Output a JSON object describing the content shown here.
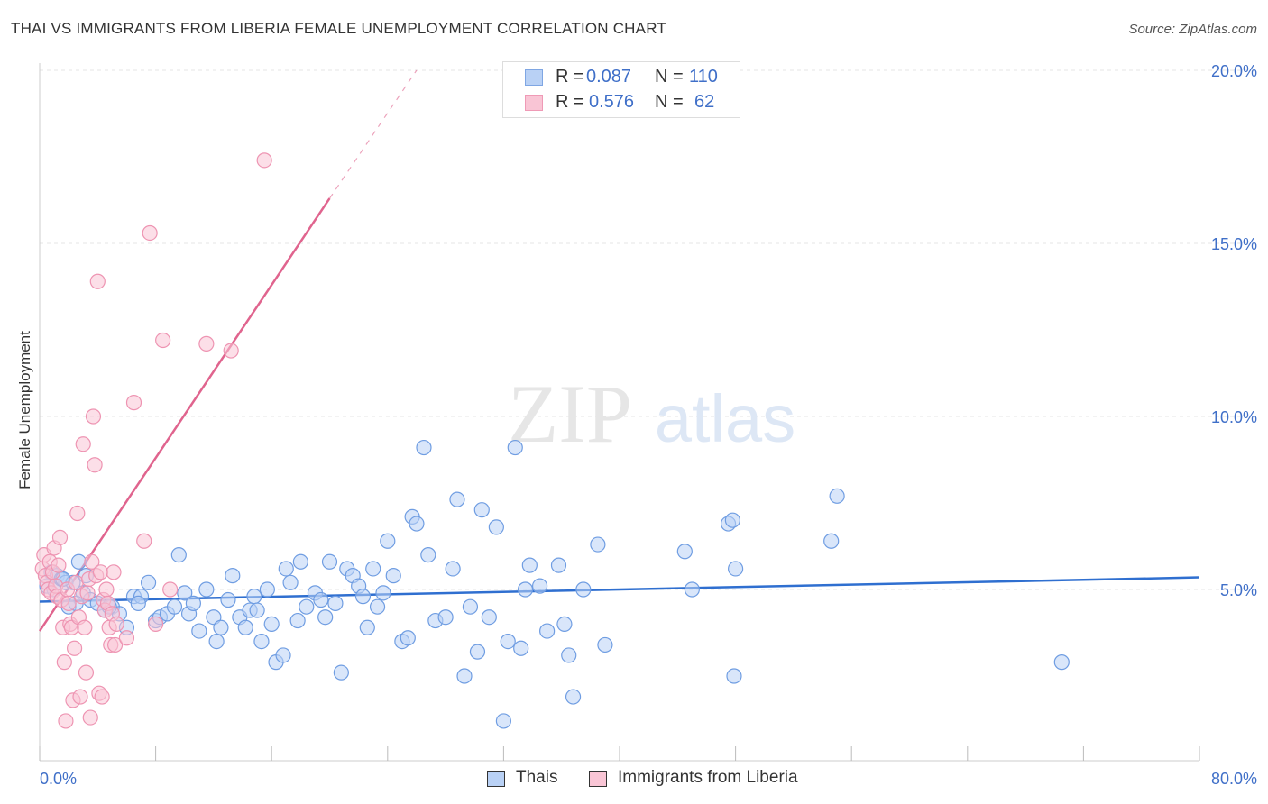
{
  "header": {
    "title": "THAI VS IMMIGRANTS FROM LIBERIA FEMALE UNEMPLOYMENT CORRELATION CHART",
    "source": "Source: ZipAtlas.com"
  },
  "legend": {
    "series1": {
      "r_label": "R =",
      "r_value": "0.087",
      "n_label": "N =",
      "n_value": "110"
    },
    "series2": {
      "r_label": "R =",
      "r_value": "0.576",
      "n_label": "N =",
      "n_value": "62"
    }
  },
  "bottom_legend": {
    "series1": "Thais",
    "series2": "Immigrants from Liberia"
  },
  "watermark": {
    "zip": "ZIP",
    "atlas": "atlas"
  },
  "colors": {
    "blue_fill": "#b9d1f5",
    "blue_stroke": "#6f9de2",
    "blue_line": "#2f6fd0",
    "pink_fill": "#f9c5d5",
    "pink_stroke": "#ee94b2",
    "pink_line": "#e0648e",
    "axis_text": "#3f6fc8"
  },
  "chart_data": {
    "type": "scatter",
    "title": "THAI VS IMMIGRANTS FROM LIBERIA FEMALE UNEMPLOYMENT CORRELATION CHART",
    "xlabel": "",
    "ylabel": "Female Unemployment",
    "xlim": [
      0,
      80
    ],
    "ylim": [
      0,
      20.5
    ],
    "x_tick_labels": [
      "0.0%",
      "80.0%"
    ],
    "y_ticks": [
      5,
      10,
      15,
      20
    ],
    "y_tick_labels": [
      "5.0%",
      "10.0%",
      "15.0%",
      "20.0%"
    ],
    "grid": true,
    "series": [
      {
        "name": "Thais",
        "R": 0.087,
        "N": 110,
        "trend": {
          "x": [
            0,
            80
          ],
          "y": [
            4.65,
            5.35
          ]
        },
        "points": [
          [
            0.5,
            5.1
          ],
          [
            0.8,
            5.5
          ],
          [
            1.0,
            5.0
          ],
          [
            1.2,
            5.4
          ],
          [
            1.5,
            5.3
          ],
          [
            1.8,
            5.2
          ],
          [
            2.0,
            4.5
          ],
          [
            2.3,
            5.2
          ],
          [
            2.7,
            5.8
          ],
          [
            3.0,
            4.9
          ],
          [
            3.5,
            4.7
          ],
          [
            4.0,
            4.6
          ],
          [
            4.5,
            4.4
          ],
          [
            5.0,
            4.5
          ],
          [
            5.5,
            4.3
          ],
          [
            6.0,
            3.9
          ],
          [
            6.5,
            4.8
          ],
          [
            7.0,
            4.8
          ],
          [
            7.5,
            5.2
          ],
          [
            8.0,
            4.1
          ],
          [
            8.3,
            4.2
          ],
          [
            8.8,
            4.3
          ],
          [
            9.3,
            4.5
          ],
          [
            9.6,
            6.0
          ],
          [
            10.0,
            4.9
          ],
          [
            10.3,
            4.3
          ],
          [
            10.6,
            4.6
          ],
          [
            11.0,
            3.8
          ],
          [
            11.5,
            5.0
          ],
          [
            12.0,
            4.2
          ],
          [
            12.2,
            3.5
          ],
          [
            12.5,
            3.9
          ],
          [
            13.0,
            4.7
          ],
          [
            13.3,
            5.4
          ],
          [
            13.8,
            4.2
          ],
          [
            14.2,
            3.9
          ],
          [
            14.5,
            4.4
          ],
          [
            14.8,
            4.8
          ],
          [
            15.0,
            4.4
          ],
          [
            15.3,
            3.5
          ],
          [
            15.7,
            5.0
          ],
          [
            16.0,
            4.0
          ],
          [
            16.3,
            2.9
          ],
          [
            16.8,
            3.1
          ],
          [
            17.0,
            5.6
          ],
          [
            17.3,
            5.2
          ],
          [
            17.8,
            4.1
          ],
          [
            18.0,
            5.8
          ],
          [
            18.4,
            4.5
          ],
          [
            19.0,
            4.9
          ],
          [
            19.4,
            4.7
          ],
          [
            19.7,
            4.2
          ],
          [
            20.0,
            5.8
          ],
          [
            20.4,
            4.6
          ],
          [
            20.8,
            2.6
          ],
          [
            21.2,
            5.6
          ],
          [
            21.6,
            5.4
          ],
          [
            22.0,
            5.1
          ],
          [
            22.3,
            4.8
          ],
          [
            22.6,
            3.9
          ],
          [
            23.0,
            5.6
          ],
          [
            23.3,
            4.5
          ],
          [
            23.7,
            4.9
          ],
          [
            24.0,
            6.4
          ],
          [
            24.4,
            5.4
          ],
          [
            25.0,
            3.5
          ],
          [
            25.4,
            3.6
          ],
          [
            25.7,
            7.1
          ],
          [
            26.0,
            6.9
          ],
          [
            26.5,
            9.1
          ],
          [
            26.8,
            6.0
          ],
          [
            27.3,
            4.1
          ],
          [
            28.0,
            4.2
          ],
          [
            28.5,
            5.6
          ],
          [
            28.8,
            7.6
          ],
          [
            29.3,
            2.5
          ],
          [
            29.7,
            4.5
          ],
          [
            30.2,
            3.2
          ],
          [
            30.5,
            7.3
          ],
          [
            31.0,
            4.2
          ],
          [
            31.5,
            6.8
          ],
          [
            32.0,
            1.2
          ],
          [
            32.3,
            3.5
          ],
          [
            32.8,
            9.1
          ],
          [
            33.2,
            3.3
          ],
          [
            33.5,
            5.0
          ],
          [
            33.8,
            5.7
          ],
          [
            34.5,
            5.1
          ],
          [
            35.0,
            3.8
          ],
          [
            35.8,
            5.7
          ],
          [
            36.2,
            4.0
          ],
          [
            36.5,
            3.1
          ],
          [
            36.8,
            1.9
          ],
          [
            37.5,
            5.0
          ],
          [
            38.5,
            6.3
          ],
          [
            39.0,
            3.4
          ],
          [
            44.5,
            6.1
          ],
          [
            45.0,
            5.0
          ],
          [
            47.5,
            6.9
          ],
          [
            47.8,
            7.0
          ],
          [
            47.9,
            2.5
          ],
          [
            48.0,
            5.6
          ],
          [
            54.6,
            6.4
          ],
          [
            55.0,
            7.7
          ],
          [
            70.5,
            2.9
          ],
          [
            1.6,
            5.3
          ],
          [
            2.5,
            4.6
          ],
          [
            3.2,
            5.4
          ],
          [
            4.8,
            4.5
          ],
          [
            6.8,
            4.6
          ]
        ]
      },
      {
        "name": "Immigrants from Liberia",
        "R": 0.576,
        "N": 62,
        "trend": {
          "x": [
            0,
            20.0
          ],
          "y": [
            3.8,
            16.3
          ],
          "dashed_x": [
            20.0,
            26.0
          ],
          "dashed_y": [
            16.3,
            20.0
          ]
        },
        "points": [
          [
            0.2,
            5.6
          ],
          [
            0.3,
            6.0
          ],
          [
            0.4,
            5.4
          ],
          [
            0.5,
            5.2
          ],
          [
            0.6,
            5.0
          ],
          [
            0.7,
            5.8
          ],
          [
            0.8,
            4.9
          ],
          [
            0.9,
            5.5
          ],
          [
            1.0,
            6.2
          ],
          [
            1.1,
            5.1
          ],
          [
            1.2,
            4.8
          ],
          [
            1.3,
            5.7
          ],
          [
            1.4,
            6.5
          ],
          [
            1.5,
            4.7
          ],
          [
            1.6,
            3.9
          ],
          [
            1.7,
            2.9
          ],
          [
            1.8,
            1.2
          ],
          [
            1.9,
            5.0
          ],
          [
            2.0,
            4.6
          ],
          [
            2.1,
            4.0
          ],
          [
            2.2,
            3.9
          ],
          [
            2.3,
            1.8
          ],
          [
            2.4,
            3.3
          ],
          [
            2.5,
            5.2
          ],
          [
            2.6,
            7.2
          ],
          [
            2.7,
            4.2
          ],
          [
            2.8,
            1.9
          ],
          [
            2.9,
            4.8
          ],
          [
            3.0,
            9.2
          ],
          [
            3.1,
            3.9
          ],
          [
            3.2,
            2.6
          ],
          [
            3.3,
            4.9
          ],
          [
            3.4,
            5.3
          ],
          [
            3.5,
            1.3
          ],
          [
            3.6,
            5.8
          ],
          [
            3.7,
            10.0
          ],
          [
            3.8,
            8.6
          ],
          [
            3.9,
            5.4
          ],
          [
            4.0,
            13.9
          ],
          [
            4.1,
            2.0
          ],
          [
            4.2,
            5.5
          ],
          [
            4.3,
            1.9
          ],
          [
            4.4,
            4.7
          ],
          [
            4.5,
            4.4
          ],
          [
            4.6,
            5.0
          ],
          [
            4.7,
            4.6
          ],
          [
            4.8,
            3.9
          ],
          [
            4.9,
            3.4
          ],
          [
            5.0,
            4.3
          ],
          [
            5.1,
            5.5
          ],
          [
            5.2,
            3.4
          ],
          [
            5.3,
            4.0
          ],
          [
            6.5,
            10.4
          ],
          [
            7.2,
            6.4
          ],
          [
            7.6,
            15.3
          ],
          [
            8.0,
            4.0
          ],
          [
            8.5,
            12.2
          ],
          [
            9.0,
            5.0
          ],
          [
            11.5,
            12.1
          ],
          [
            13.2,
            11.9
          ],
          [
            15.5,
            17.4
          ],
          [
            6.0,
            3.6
          ]
        ]
      }
    ]
  }
}
